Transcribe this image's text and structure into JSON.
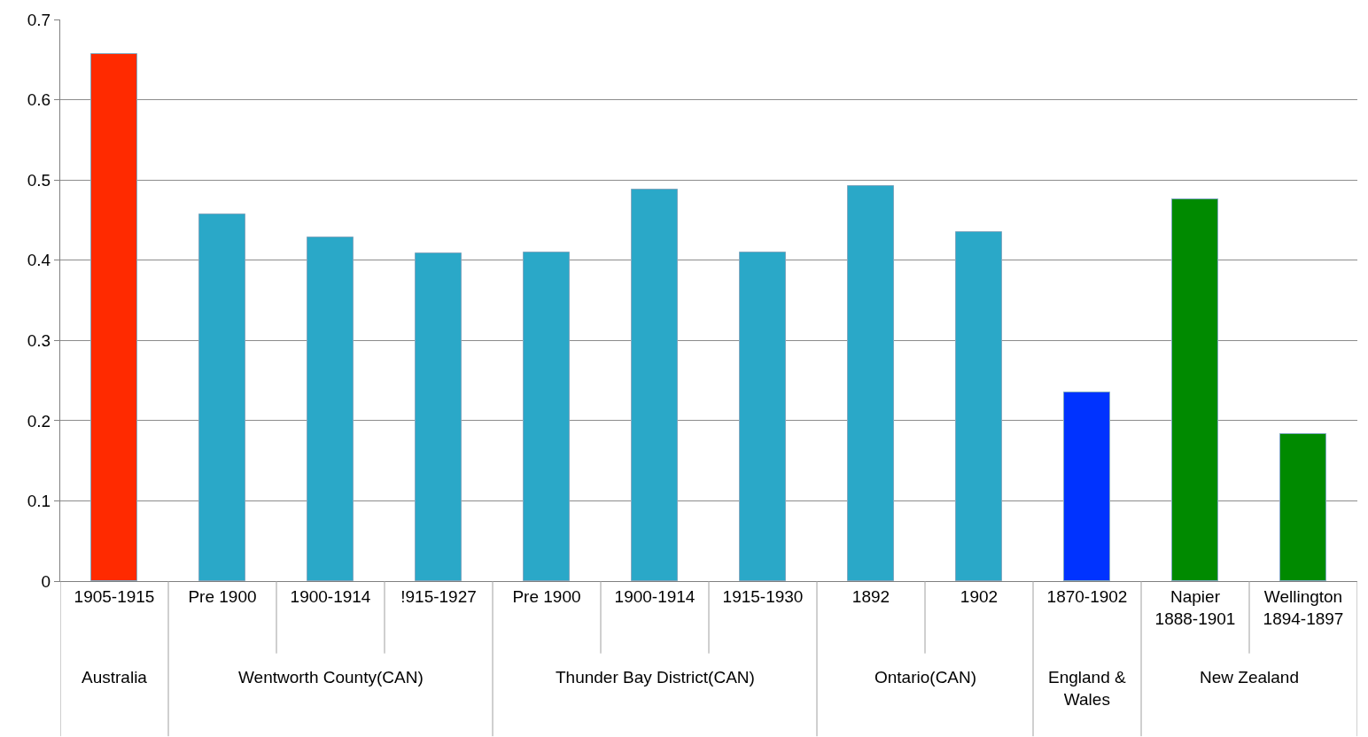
{
  "chart_data": {
    "type": "bar",
    "categories": [
      "1905-1915",
      "Pre 1900",
      "1900-1914",
      "!915-1927",
      "Pre 1900",
      "1900-1914",
      "1915-1930",
      "1892",
      "1902",
      "1870-1902",
      "Napier\n1888-1901",
      "Wellington\n1894-1897"
    ],
    "values": [
      0.657,
      0.457,
      0.428,
      0.408,
      0.41,
      0.488,
      0.41,
      0.492,
      0.435,
      0.235,
      0.476,
      0.183
    ],
    "colors": [
      "#ff2a00",
      "#2aa8c8",
      "#2aa8c8",
      "#2aa8c8",
      "#2aa8c8",
      "#2aa8c8",
      "#2aa8c8",
      "#2aa8c8",
      "#2aa8c8",
      "#0033ff",
      "#008a00",
      "#008a00"
    ],
    "annotations": [
      "Australia",
      "Wentworth County(CAN)",
      "Thunder Bay District(CAN)",
      "Ontario(CAN)",
      "England &\nWales",
      "New Zealand"
    ],
    "ylim": [
      0,
      0.7
    ],
    "yticks": [
      0,
      0.1,
      0.2,
      0.3,
      0.4,
      0.5,
      0.6,
      0.7
    ],
    "grid": "y"
  }
}
